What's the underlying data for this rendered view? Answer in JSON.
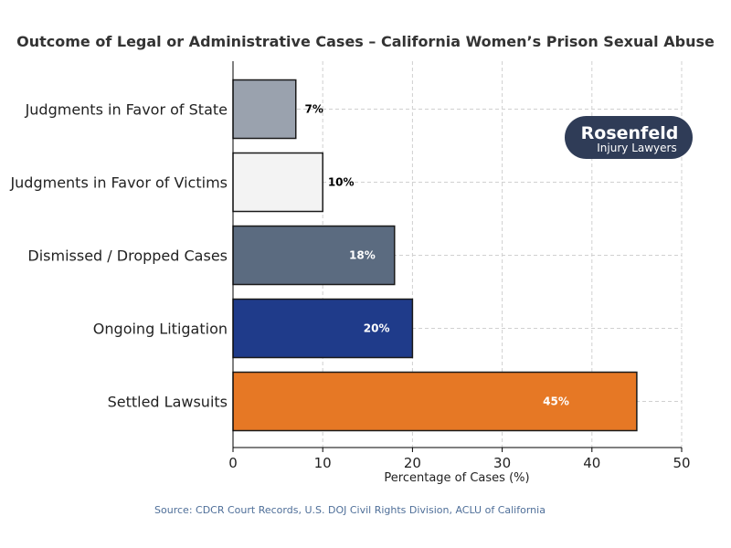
{
  "chart_data": {
    "type": "bar",
    "orientation": "horizontal",
    "title": "Outcome of Legal or Administrative Cases – California Women’s Prison Sexual Abuse",
    "xlabel": "Percentage of Cases (%)",
    "ylabel": "",
    "xlim": [
      0,
      50
    ],
    "xticks": [
      0,
      10,
      20,
      30,
      40,
      50
    ],
    "grid": true,
    "categories": [
      "Judgments in Favor of State",
      "Judgments in Favor of Victims",
      "Dismissed / Dropped Cases",
      "Ongoing Litigation",
      "Settled Lawsuits"
    ],
    "values": [
      7,
      10,
      18,
      20,
      45
    ],
    "value_labels": [
      "7%",
      "10%",
      "18%",
      "20%",
      "45%"
    ],
    "colors": [
      "#9aa2ae",
      "#f3f3f3",
      "#5b6b80",
      "#1f3b8a",
      "#e67825"
    ],
    "label_colors": [
      "#000000",
      "#000000",
      "#ffffff",
      "#ffffff",
      "#ffffff"
    ],
    "source": "Source: CDCR Court Records, U.S. DOJ Civil Rights Division, ACLU of California"
  },
  "logo": {
    "main": "Rosenfeld",
    "sub": "Injury Lawyers",
    "background": "#2f3c57"
  }
}
